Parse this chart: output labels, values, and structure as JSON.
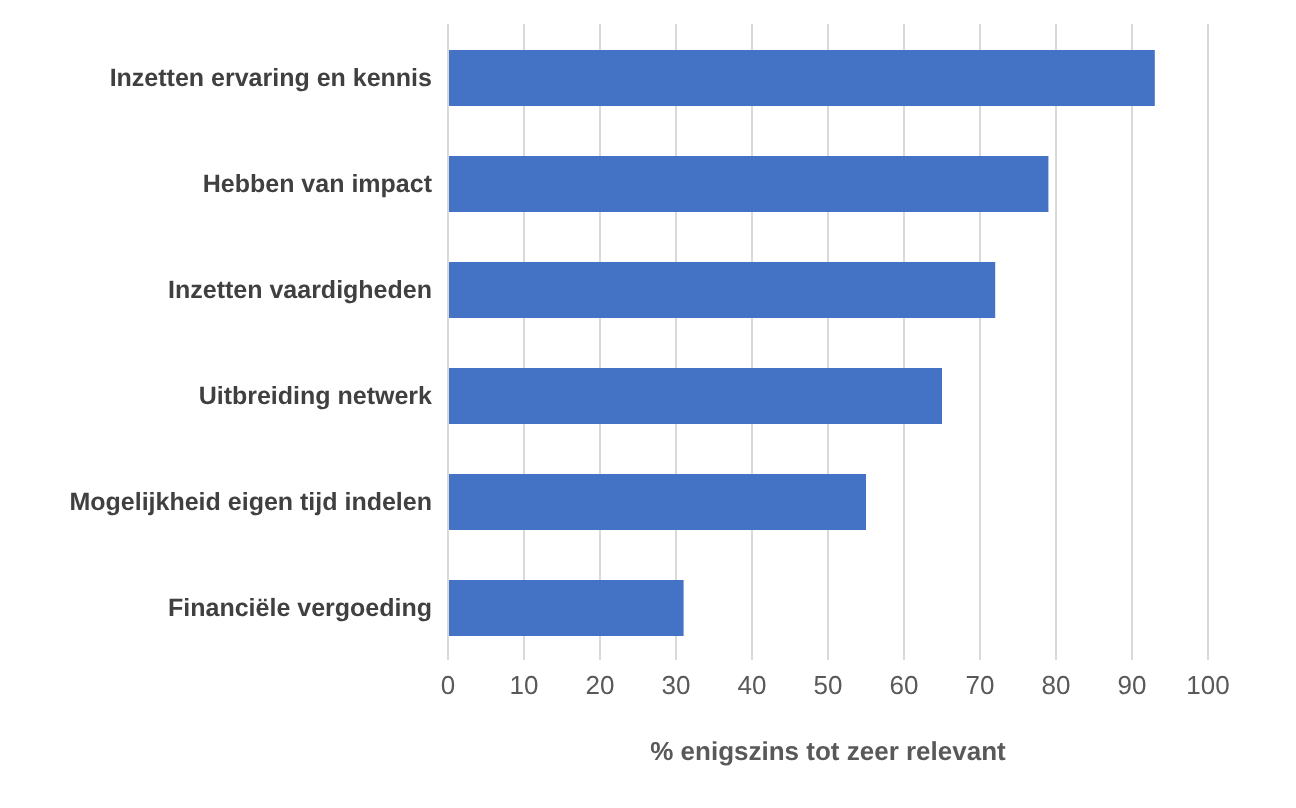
{
  "chart_data": {
    "type": "bar",
    "orientation": "horizontal",
    "xlabel": "% enigszins tot zeer relevant",
    "categories": [
      "Inzetten ervaring en kennis",
      "Hebben van impact",
      "Inzetten vaardigheden",
      "Uitbreiding netwerk",
      "Mogelijkheid eigen tijd indelen",
      "Financiële vergoeding"
    ],
    "values": [
      93,
      79,
      72,
      65,
      55,
      31
    ],
    "color": "#4472c4",
    "xlim": [
      0,
      100
    ],
    "xticks": [
      0,
      10,
      20,
      30,
      40,
      50,
      60,
      70,
      80,
      90,
      100
    ],
    "grid": "x"
  }
}
